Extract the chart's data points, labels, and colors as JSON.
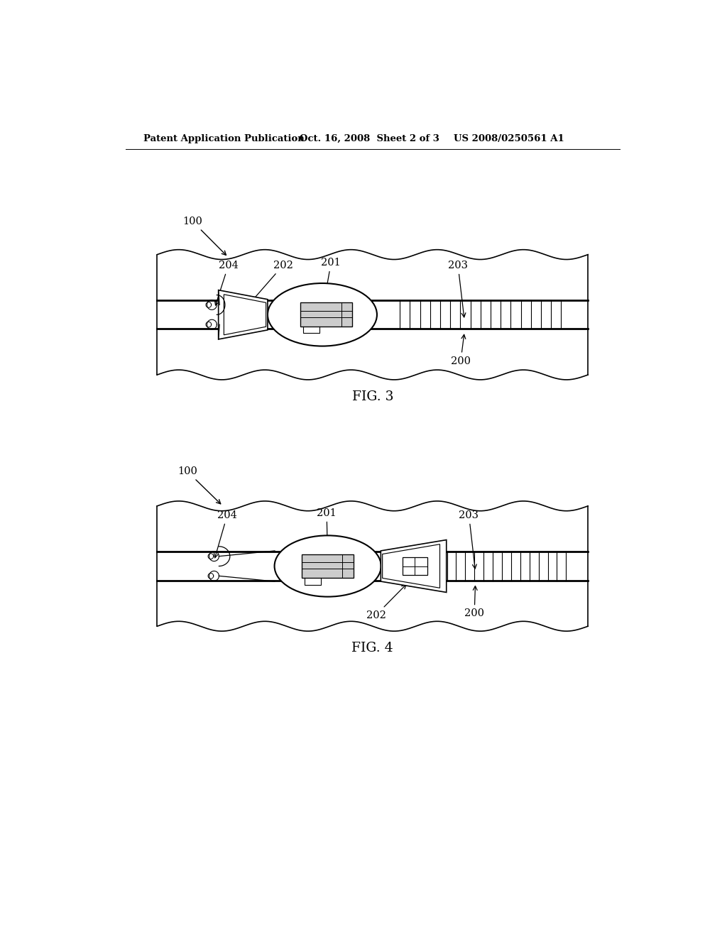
{
  "bg_color": "#ffffff",
  "text_color": "#000000",
  "header_left": "Patent Application Publication",
  "header_mid": "Oct. 16, 2008  Sheet 2 of 3",
  "header_right": "US 2008/0250561 A1",
  "fig3_caption": "FIG. 3",
  "fig4_caption": "FIG. 4",
  "line_color": "#000000",
  "lw": 1.2
}
